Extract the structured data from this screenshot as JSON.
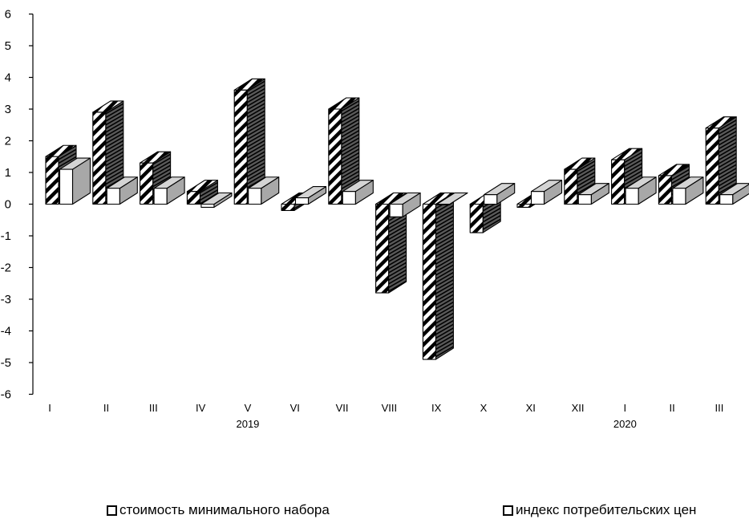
{
  "chart_data": {
    "type": "bar",
    "title": "",
    "xlabel": "",
    "ylabel": "",
    "ylim": [
      -6,
      6
    ],
    "yticks": [
      "6",
      "5",
      "4",
      "3",
      "2",
      "1",
      "0",
      "-1",
      "-2",
      "-3",
      "-4",
      "-5",
      "-6"
    ],
    "categories": [
      "I",
      "II",
      "III",
      "IV",
      "V",
      "VI",
      "VII",
      "VIII",
      "IX",
      "X",
      "XI",
      "XII",
      "I",
      "II",
      "III"
    ],
    "year_labels": [
      {
        "label": "2019",
        "category_index": 4
      },
      {
        "label": "2020",
        "category_index": 12
      }
    ],
    "grid": false,
    "legend_position": "bottom",
    "series": [
      {
        "name": "стоимость минимального набора",
        "pattern": "diagonal-hatch",
        "values": [
          1.5,
          2.9,
          1.3,
          0.4,
          3.6,
          -0.2,
          3.0,
          -2.8,
          -4.9,
          -0.9,
          -0.1,
          1.1,
          1.4,
          0.9,
          2.4
        ]
      },
      {
        "name": "индекс потребительских цен",
        "pattern": "white",
        "values": [
          1.1,
          0.5,
          0.5,
          -0.1,
          0.5,
          0.2,
          0.4,
          -0.4,
          0.0,
          0.3,
          0.4,
          0.3,
          0.5,
          0.5,
          0.3
        ]
      }
    ],
    "colors": {
      "axis": "#000000",
      "hatch_face": "#ffffff",
      "side": "#a8a8a8",
      "top": "#d4d4d4",
      "front_white": "#ffffff"
    }
  }
}
